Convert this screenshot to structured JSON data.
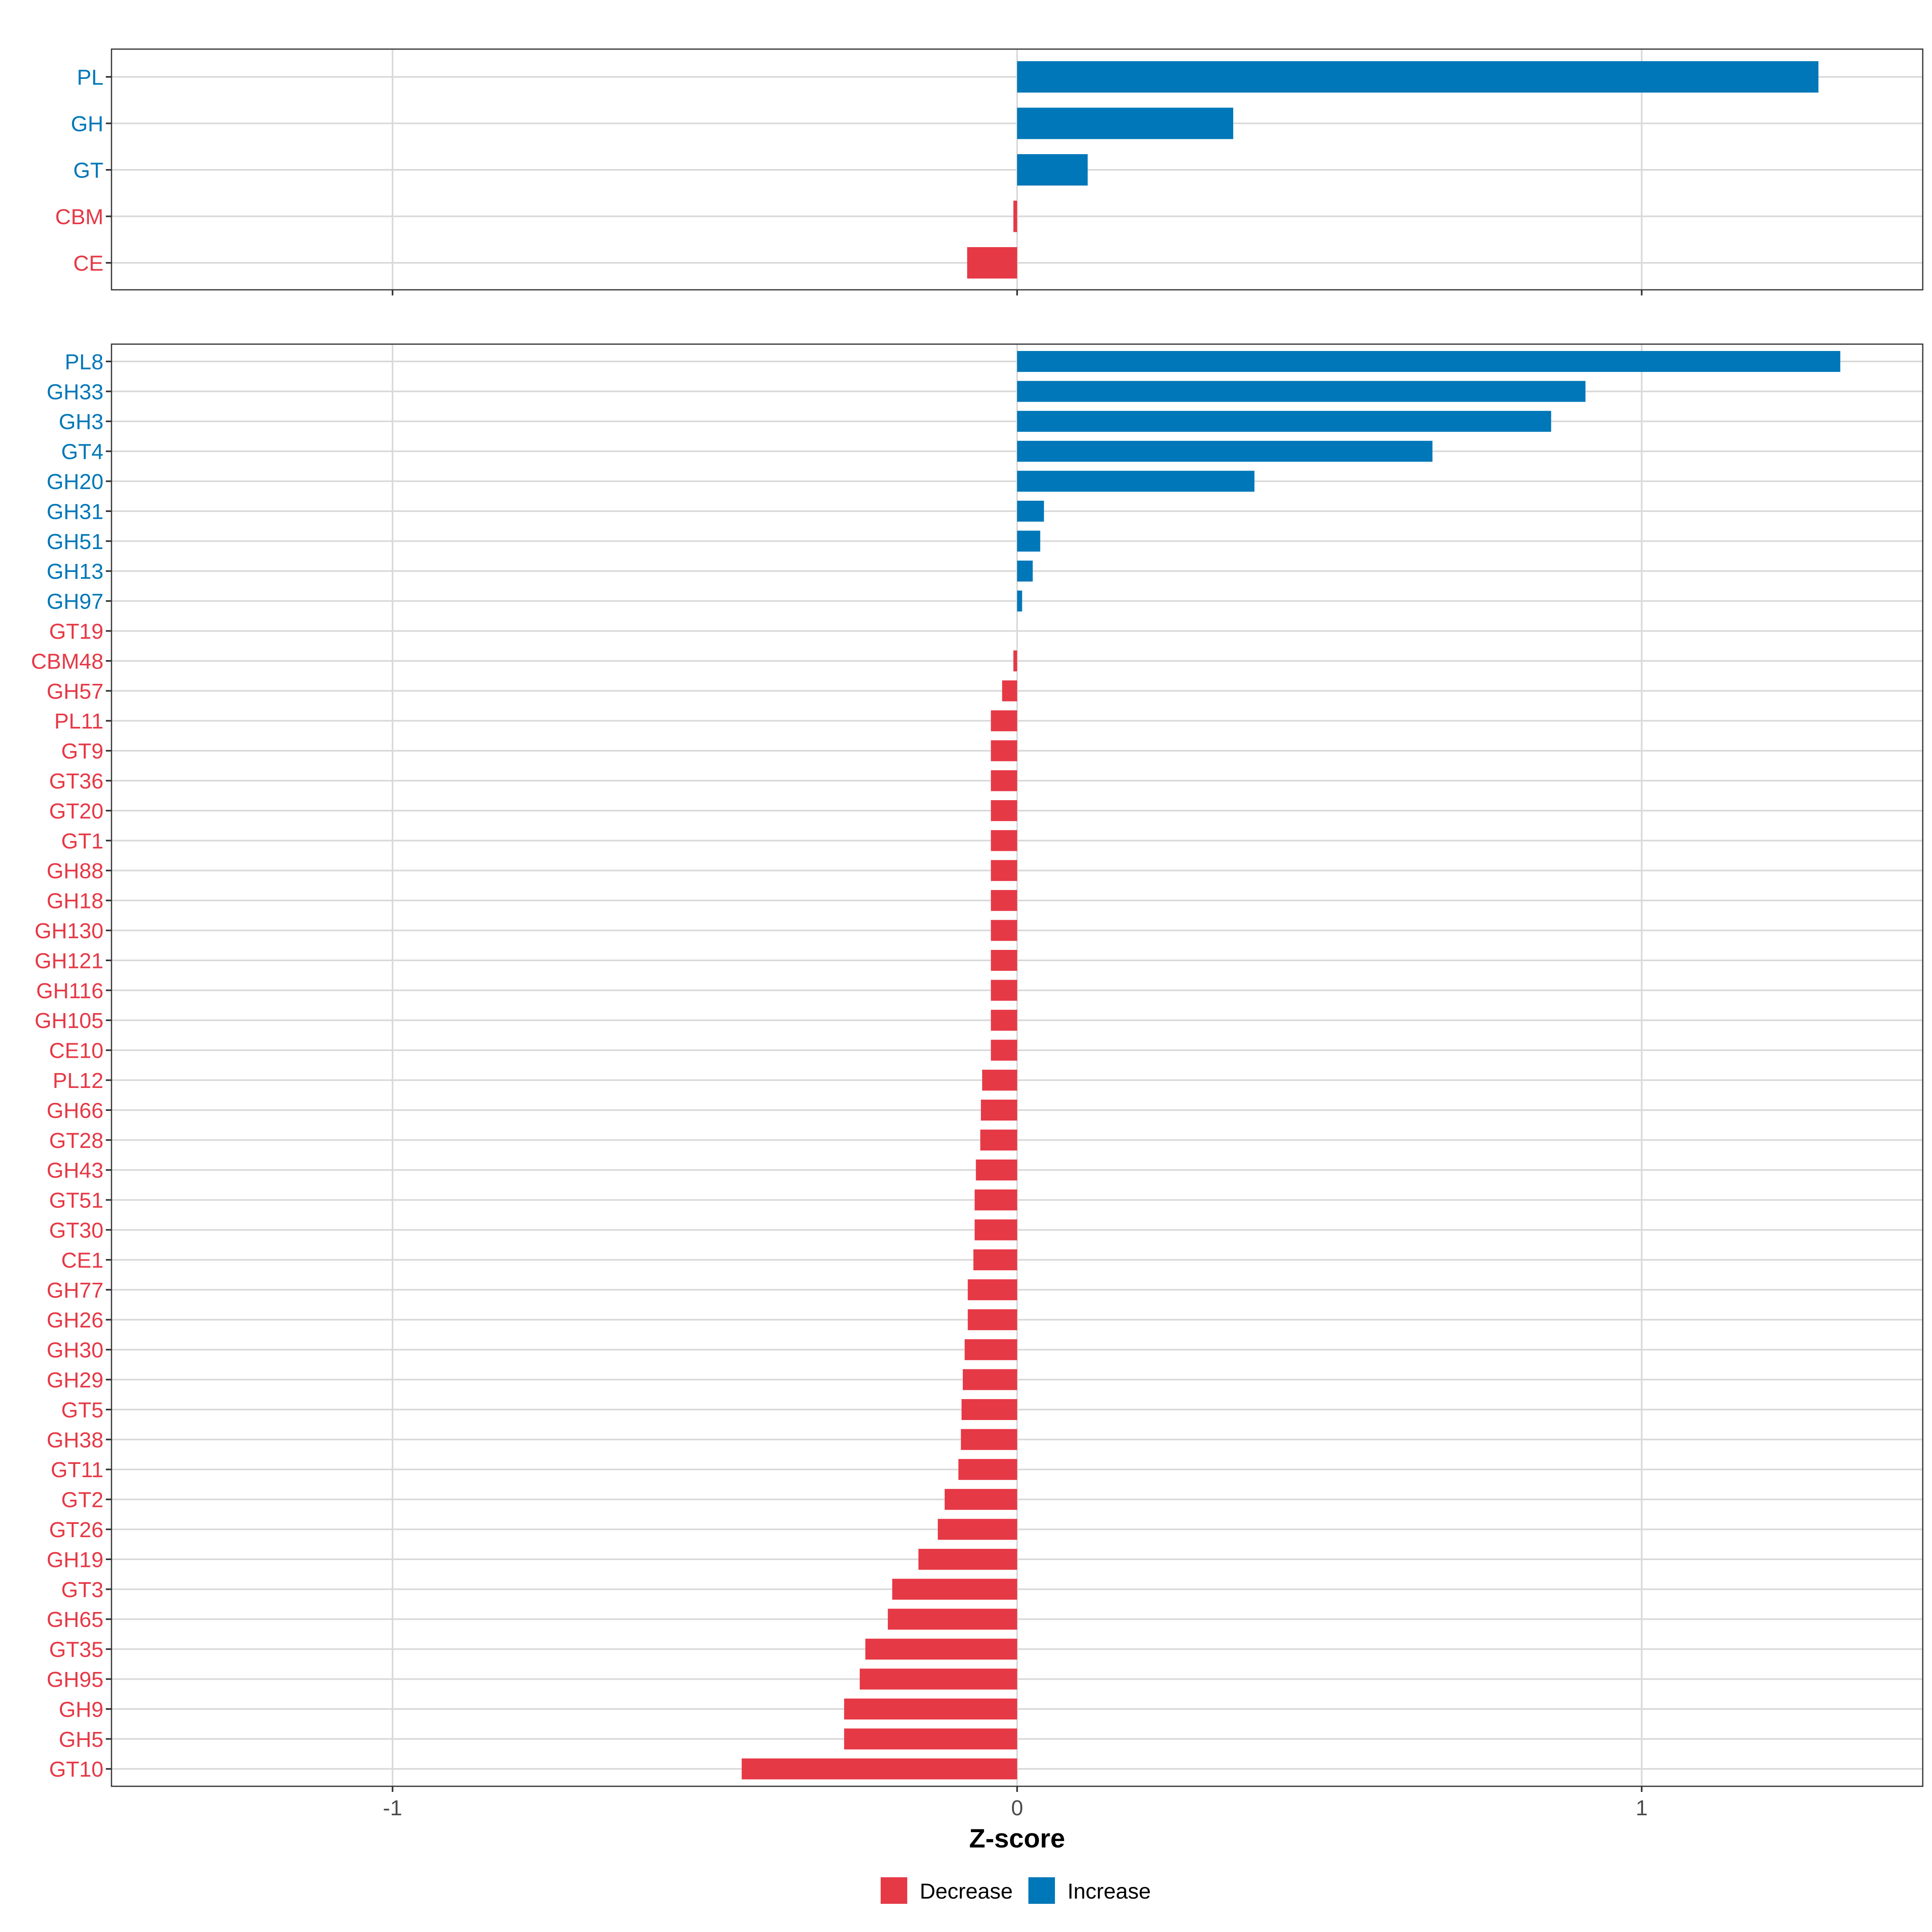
{
  "colors": {
    "increase": "#0077B8",
    "decrease": "#E63946",
    "grid": "#D9D9D9",
    "frame": "#333333",
    "axis_text": "#4D4D4D",
    "title_text": "#000000"
  },
  "chart_data": [
    {
      "type": "bar",
      "orientation": "horizontal",
      "panel": "top",
      "xlabel": "",
      "xlim": [
        -1.45,
        1.45
      ],
      "xticks": [
        -1,
        0,
        1
      ],
      "grid": true,
      "bars": [
        {
          "label": "PL",
          "value": 1.283,
          "direction": "Increase"
        },
        {
          "label": "GH",
          "value": 0.346,
          "direction": "Increase"
        },
        {
          "label": "GT",
          "value": 0.113,
          "direction": "Increase"
        },
        {
          "label": "CBM",
          "value": -0.006,
          "direction": "Decrease"
        },
        {
          "label": "CE",
          "value": -0.08,
          "direction": "Decrease"
        }
      ]
    },
    {
      "type": "bar",
      "orientation": "horizontal",
      "panel": "bottom",
      "xlabel": "Z-score",
      "xlim": [
        -1.45,
        1.45
      ],
      "xticks": [
        -1,
        0,
        1
      ],
      "xtick_labels": [
        "-1",
        "0",
        "1"
      ],
      "grid": true,
      "bars": [
        {
          "label": "PL8",
          "value": 1.318,
          "direction": "Increase"
        },
        {
          "label": "GH33",
          "value": 0.91,
          "direction": "Increase"
        },
        {
          "label": "GH3",
          "value": 0.855,
          "direction": "Increase"
        },
        {
          "label": "GT4",
          "value": 0.665,
          "direction": "Increase"
        },
        {
          "label": "GH20",
          "value": 0.38,
          "direction": "Increase"
        },
        {
          "label": "GH31",
          "value": 0.043,
          "direction": "Increase"
        },
        {
          "label": "GH51",
          "value": 0.037,
          "direction": "Increase"
        },
        {
          "label": "GH13",
          "value": 0.025,
          "direction": "Increase"
        },
        {
          "label": "GH97",
          "value": 0.008,
          "direction": "Increase"
        },
        {
          "label": "GT19",
          "value": 0.0,
          "direction": "Decrease"
        },
        {
          "label": "CBM48",
          "value": -0.006,
          "direction": "Decrease"
        },
        {
          "label": "GH57",
          "value": -0.024,
          "direction": "Decrease"
        },
        {
          "label": "PL11",
          "value": -0.042,
          "direction": "Decrease"
        },
        {
          "label": "GT9",
          "value": -0.042,
          "direction": "Decrease"
        },
        {
          "label": "GT36",
          "value": -0.042,
          "direction": "Decrease"
        },
        {
          "label": "GT20",
          "value": -0.042,
          "direction": "Decrease"
        },
        {
          "label": "GT1",
          "value": -0.042,
          "direction": "Decrease"
        },
        {
          "label": "GH88",
          "value": -0.042,
          "direction": "Decrease"
        },
        {
          "label": "GH18",
          "value": -0.042,
          "direction": "Decrease"
        },
        {
          "label": "GH130",
          "value": -0.042,
          "direction": "Decrease"
        },
        {
          "label": "GH121",
          "value": -0.042,
          "direction": "Decrease"
        },
        {
          "label": "GH116",
          "value": -0.042,
          "direction": "Decrease"
        },
        {
          "label": "GH105",
          "value": -0.042,
          "direction": "Decrease"
        },
        {
          "label": "CE10",
          "value": -0.042,
          "direction": "Decrease"
        },
        {
          "label": "PL12",
          "value": -0.056,
          "direction": "Decrease"
        },
        {
          "label": "GH66",
          "value": -0.058,
          "direction": "Decrease"
        },
        {
          "label": "GT28",
          "value": -0.059,
          "direction": "Decrease"
        },
        {
          "label": "GH43",
          "value": -0.066,
          "direction": "Decrease"
        },
        {
          "label": "GT51",
          "value": -0.068,
          "direction": "Decrease"
        },
        {
          "label": "GT30",
          "value": -0.068,
          "direction": "Decrease"
        },
        {
          "label": "CE1",
          "value": -0.07,
          "direction": "Decrease"
        },
        {
          "label": "GH77",
          "value": -0.079,
          "direction": "Decrease"
        },
        {
          "label": "GH26",
          "value": -0.079,
          "direction": "Decrease"
        },
        {
          "label": "GH30",
          "value": -0.084,
          "direction": "Decrease"
        },
        {
          "label": "GH29",
          "value": -0.087,
          "direction": "Decrease"
        },
        {
          "label": "GT5",
          "value": -0.089,
          "direction": "Decrease"
        },
        {
          "label": "GH38",
          "value": -0.09,
          "direction": "Decrease"
        },
        {
          "label": "GT11",
          "value": -0.094,
          "direction": "Decrease"
        },
        {
          "label": "GT2",
          "value": -0.116,
          "direction": "Decrease"
        },
        {
          "label": "GT26",
          "value": -0.127,
          "direction": "Decrease"
        },
        {
          "label": "GH19",
          "value": -0.158,
          "direction": "Decrease"
        },
        {
          "label": "GT3",
          "value": -0.2,
          "direction": "Decrease"
        },
        {
          "label": "GH65",
          "value": -0.207,
          "direction": "Decrease"
        },
        {
          "label": "GT35",
          "value": -0.243,
          "direction": "Decrease"
        },
        {
          "label": "GH95",
          "value": -0.252,
          "direction": "Decrease"
        },
        {
          "label": "GH9",
          "value": -0.277,
          "direction": "Decrease"
        },
        {
          "label": "GH5",
          "value": -0.277,
          "direction": "Decrease"
        },
        {
          "label": "GT10",
          "value": -0.441,
          "direction": "Decrease"
        }
      ]
    }
  ],
  "legend": {
    "placement": "bottom",
    "items": [
      {
        "label": "Decrease",
        "key": "decrease"
      },
      {
        "label": "Increase",
        "key": "increase"
      }
    ]
  }
}
